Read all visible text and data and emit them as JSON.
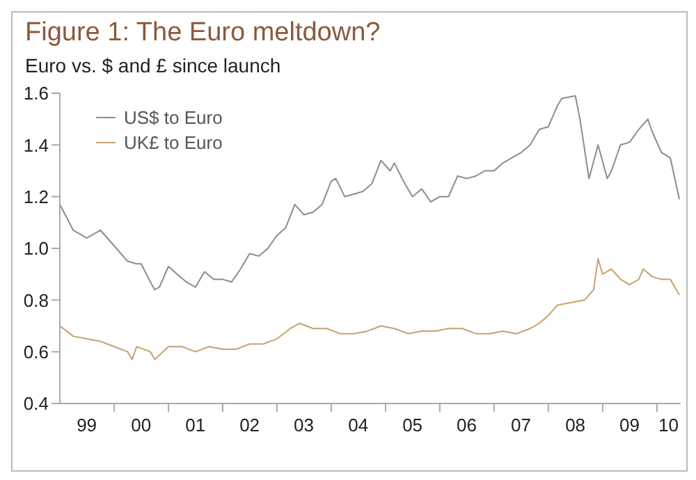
{
  "chart_data": {
    "type": "line",
    "title": "Figure 1: The Euro meltdown?",
    "subtitle": "Euro vs. $ and £ since launch",
    "xlim": [
      "1999-01-01",
      "2010-06-10"
    ],
    "xticks": [
      {
        "value": "1999-07-01",
        "label": "99"
      },
      {
        "value": "2000-01-01",
        "label": null
      },
      {
        "value": "2000-07-01",
        "label": "00"
      },
      {
        "value": "2001-01-01",
        "label": null
      },
      {
        "value": "2001-07-01",
        "label": "01"
      },
      {
        "value": "2002-01-01",
        "label": null
      },
      {
        "value": "2002-07-01",
        "label": "02"
      },
      {
        "value": "2003-01-01",
        "label": null
      },
      {
        "value": "2003-07-01",
        "label": "03"
      },
      {
        "value": "2004-01-01",
        "label": null
      },
      {
        "value": "2004-07-01",
        "label": "04"
      },
      {
        "value": "2005-01-01",
        "label": null
      },
      {
        "value": "2005-07-01",
        "label": "05"
      },
      {
        "value": "2006-01-01",
        "label": null
      },
      {
        "value": "2006-07-01",
        "label": "06"
      },
      {
        "value": "2007-01-01",
        "label": null
      },
      {
        "value": "2007-07-01",
        "label": "07"
      },
      {
        "value": "2008-01-01",
        "label": null
      },
      {
        "value": "2008-07-01",
        "label": "08"
      },
      {
        "value": "2009-01-01",
        "label": null
      },
      {
        "value": "2009-07-01",
        "label": "09"
      },
      {
        "value": "2010-01-01",
        "label": null
      },
      {
        "value": "2010-03-20",
        "label": "10"
      }
    ],
    "ylim": [
      0.4,
      1.6
    ],
    "yticks": [
      0.4,
      0.6,
      0.8,
      {
        "value": 1,
        "label": "1.0"
      },
      1.2,
      1.4,
      1.6
    ],
    "legend": "top left",
    "marker": "none",
    "line_style": "solid",
    "series": [
      {
        "name": "US$ to Euro",
        "color": "#8c8c8c",
        "x": [
          "1999-01",
          "1999-04",
          "1999-07",
          "1999-10",
          "2000-01",
          "2000-04",
          "2000-06",
          "2000-07",
          "2000-09",
          "2000-10",
          "2000-11",
          "2001-01",
          "2001-03",
          "2001-05",
          "2001-07",
          "2001-09",
          "2001-11",
          "2002-01",
          "2002-03",
          "2002-05",
          "2002-07",
          "2002-09",
          "2002-11",
          "2003-01",
          "2003-03",
          "2003-05",
          "2003-07",
          "2003-09",
          "2003-11",
          "2004-01",
          "2004-02",
          "2004-04",
          "2004-06",
          "2004-08",
          "2004-10",
          "2004-12",
          "2005-02",
          "2005-03",
          "2005-05",
          "2005-07",
          "2005-09",
          "2005-11",
          "2006-01",
          "2006-03",
          "2006-05",
          "2006-07",
          "2006-09",
          "2006-11",
          "2007-01",
          "2007-03",
          "2007-05",
          "2007-07",
          "2007-09",
          "2007-11",
          "2008-01",
          "2008-03",
          "2008-04",
          "2008-07",
          "2008-08",
          "2008-10",
          "2008-12",
          "2009-02",
          "2009-03",
          "2009-05",
          "2009-07",
          "2009-09",
          "2009-11",
          "2009-12",
          "2010-02",
          "2010-04",
          "2010-06"
        ],
        "values": [
          1.17,
          1.07,
          1.04,
          1.07,
          1.01,
          0.95,
          0.94,
          0.94,
          0.87,
          0.84,
          0.85,
          0.93,
          0.9,
          0.87,
          0.85,
          0.91,
          0.88,
          0.88,
          0.87,
          0.92,
          0.98,
          0.97,
          1.0,
          1.05,
          1.08,
          1.17,
          1.13,
          1.14,
          1.17,
          1.26,
          1.27,
          1.2,
          1.21,
          1.22,
          1.25,
          1.34,
          1.3,
          1.33,
          1.26,
          1.2,
          1.23,
          1.18,
          1.2,
          1.2,
          1.28,
          1.27,
          1.28,
          1.3,
          1.3,
          1.33,
          1.35,
          1.37,
          1.4,
          1.46,
          1.47,
          1.55,
          1.58,
          1.59,
          1.5,
          1.27,
          1.4,
          1.27,
          1.3,
          1.4,
          1.41,
          1.46,
          1.5,
          1.45,
          1.37,
          1.35,
          1.19
        ]
      },
      {
        "name": "UK£ to Euro",
        "color": "#c8a171",
        "x": [
          "1999-01",
          "1999-04",
          "1999-07",
          "1999-10",
          "2000-01",
          "2000-04",
          "2000-05",
          "2000-06",
          "2000-09",
          "2000-10",
          "2001-01",
          "2001-04",
          "2001-07",
          "2001-10",
          "2002-01",
          "2002-04",
          "2002-07",
          "2002-10",
          "2003-01",
          "2003-04",
          "2003-06",
          "2003-09",
          "2003-12",
          "2004-03",
          "2004-06",
          "2004-09",
          "2004-12",
          "2005-03",
          "2005-06",
          "2005-09",
          "2005-12",
          "2006-03",
          "2006-06",
          "2006-09",
          "2006-12",
          "2007-03",
          "2007-06",
          "2007-09",
          "2007-11",
          "2008-01",
          "2008-03",
          "2008-06",
          "2008-09",
          "2008-11",
          "2008-12",
          "2009-01",
          "2009-03",
          "2009-05",
          "2009-07",
          "2009-09",
          "2009-10",
          "2009-12",
          "2010-02",
          "2010-04",
          "2010-06"
        ],
        "values": [
          0.7,
          0.66,
          0.65,
          0.64,
          0.62,
          0.6,
          0.57,
          0.62,
          0.6,
          0.57,
          0.62,
          0.62,
          0.6,
          0.62,
          0.61,
          0.61,
          0.63,
          0.63,
          0.65,
          0.69,
          0.71,
          0.69,
          0.69,
          0.67,
          0.67,
          0.68,
          0.7,
          0.69,
          0.67,
          0.68,
          0.68,
          0.69,
          0.69,
          0.67,
          0.67,
          0.68,
          0.67,
          0.69,
          0.71,
          0.74,
          0.78,
          0.79,
          0.8,
          0.84,
          0.96,
          0.9,
          0.92,
          0.88,
          0.86,
          0.88,
          0.92,
          0.89,
          0.88,
          0.88,
          0.82
        ]
      }
    ]
  }
}
